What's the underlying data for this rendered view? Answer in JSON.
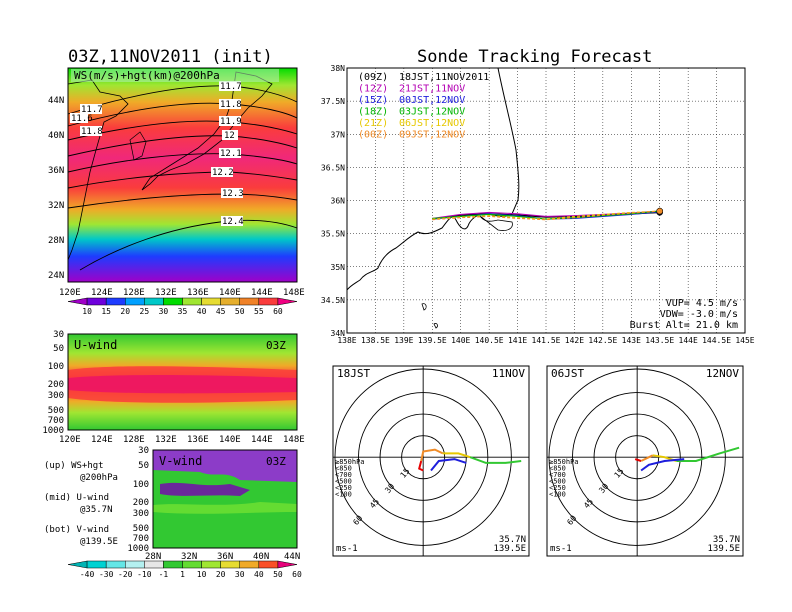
{
  "left": {
    "title": "03Z,11NOV2011 (init)",
    "top_panel": {
      "label": "WS(m/s)+hgt(km)@200hPa",
      "lat_ticks": [
        "44N",
        "40N",
        "36N",
        "32N",
        "28N",
        "24N"
      ],
      "lon_ticks": [
        "120E",
        "124E",
        "128E",
        "132E",
        "136E",
        "140E",
        "144E",
        "148E"
      ],
      "contours": [
        "11.6",
        "11.7",
        "11.7",
        "11.8",
        "11.8",
        "11.9",
        "12",
        "12.1",
        "12.2",
        "12.3",
        "12.4"
      ]
    },
    "ws_colorbar": {
      "ticks": [
        "10",
        "15",
        "20",
        "25",
        "30",
        "35",
        "40",
        "45",
        "50",
        "55",
        "60"
      ],
      "colors": [
        "#a000c8",
        "#6e00dc",
        "#1e3cff",
        "#00a0ff",
        "#00c8c8",
        "#00dc00",
        "#a0e632",
        "#e6dc32",
        "#e6af2d",
        "#f08228",
        "#fa3c3c",
        "#f00082"
      ]
    },
    "uwind_panel": {
      "label": "U-wind",
      "time": "03Z",
      "p_ticks": [
        "30",
        "50",
        "100",
        "200",
        "300",
        "500",
        "700",
        "1000"
      ],
      "lon_ticks": [
        "120E",
        "124E",
        "128E",
        "132E",
        "136E",
        "140E",
        "144E",
        "148E"
      ]
    },
    "vwind_panel": {
      "label": "V-wind",
      "time": "03Z",
      "p_ticks": [
        "30",
        "50",
        "100",
        "200",
        "300",
        "500",
        "700",
        "1000"
      ],
      "lat_ticks": [
        "28N",
        "32N",
        "36N",
        "40N",
        "44N"
      ]
    },
    "legend_notes": [
      {
        "a": "(up) WS+hgt",
        "b": "@200hPa"
      },
      {
        "a": "(mid) U-wind",
        "b": "@35.7N"
      },
      {
        "a": "(bot) V-wind",
        "b": "@139.5E"
      }
    ],
    "wind_colorbar": {
      "ticks": [
        "-40",
        "-30",
        "-20",
        "-10",
        "-1",
        "1",
        "10",
        "20",
        "30",
        "40",
        "50",
        "60"
      ],
      "colors": [
        "#00b4b4",
        "#00d2d2",
        "#64e6e6",
        "#b4f0f0",
        "#e6e6e6",
        "#32c832",
        "#64dc32",
        "#a0e632",
        "#e6dc32",
        "#f0aa28",
        "#fa5028",
        "#e6007a"
      ]
    }
  },
  "right": {
    "title": "Sonde Tracking Forecast",
    "map": {
      "lat_ticks": [
        "38N",
        "37.5N",
        "37N",
        "36.5N",
        "36N",
        "35.5N",
        "35N",
        "34.5N",
        "34N"
      ],
      "lon_ticks": [
        "138E",
        "138.5E",
        "139E",
        "139.5E",
        "140E",
        "140.5E",
        "141E",
        "141.5E",
        "142E",
        "142.5E",
        "143E",
        "143.5E",
        "144E",
        "144.5E",
        "145E"
      ],
      "legend": [
        {
          "code": "(09Z)",
          "time": "18JST,11NOV2011",
          "color": "#000000"
        },
        {
          "code": "(12Z)",
          "time": "21JST,11NOV",
          "color": "#b400b4"
        },
        {
          "code": "(15Z)",
          "time": "00JST,12NOV",
          "color": "#1e1edc"
        },
        {
          "code": "(18Z)",
          "time": "03JST,12NOV",
          "color": "#00b400"
        },
        {
          "code": "(21Z)",
          "time": "06JST,12NOV",
          "color": "#e6c800"
        },
        {
          "code": "(00Z)",
          "time": "09JST,12NOV",
          "color": "#f08c28"
        }
      ],
      "params": [
        "VUP= 4.5 m/s",
        "VDW= -3.0 m/s",
        "Burst Alt= 21.0 km"
      ]
    },
    "hodo_left": {
      "time": "18JST",
      "date": "11NOV",
      "rings": [
        "15",
        "30",
        "45",
        "60"
      ],
      "levels": [
        {
          "t": "≥850hPa",
          "c": "#e60000"
        },
        {
          "t": "<850",
          "c": "#f08c28"
        },
        {
          "t": "<700",
          "c": "#e6c800"
        },
        {
          "t": "<500",
          "c": "#32c832"
        },
        {
          "t": "<250",
          "c": "#00b4b4"
        },
        {
          "t": "<100",
          "c": "#1e1edc"
        }
      ],
      "unit": "ms-1",
      "lat": "35.7N",
      "lon": "139.5E"
    },
    "hodo_right": {
      "time": "06JST",
      "date": "12NOV",
      "rings": [
        "15",
        "30",
        "45",
        "60"
      ],
      "levels": [
        {
          "t": "≥850hPa",
          "c": "#e60000"
        },
        {
          "t": "<850",
          "c": "#f08c28"
        },
        {
          "t": "<700",
          "c": "#e6c800"
        },
        {
          "t": "<500",
          "c": "#32c832"
        },
        {
          "t": "<250",
          "c": "#00b4b4"
        },
        {
          "t": "<100",
          "c": "#1e1edc"
        }
      ],
      "unit": "ms-1",
      "lat": "35.7N",
      "lon": "139.5E"
    }
  },
  "chart_data": [
    {
      "type": "line",
      "title": "Sonde Tracking Forecast",
      "xlabel": "",
      "ylabel": "",
      "xlim": [
        138,
        145
      ],
      "ylim": [
        34,
        38
      ],
      "series": [
        {
          "name": "(09Z) 18JST,11NOV2011",
          "x": [
            139.5,
            140.0,
            140.5,
            141.0,
            141.5,
            142.0,
            142.5,
            143.0,
            143.5
          ],
          "y": [
            35.72,
            35.78,
            35.8,
            35.78,
            35.75,
            35.76,
            35.78,
            35.8,
            35.82
          ]
        },
        {
          "name": "(12Z) 21JST,11NOV",
          "x": [
            139.5,
            140.0,
            140.5,
            141.0,
            141.5,
            142.0,
            142.5,
            143.0,
            143.5
          ],
          "y": [
            35.73,
            35.79,
            35.82,
            35.8,
            35.76,
            35.77,
            35.79,
            35.81,
            35.84
          ]
        },
        {
          "name": "(15Z) 00JST,12NOV",
          "x": [
            139.5,
            140.0,
            140.5,
            141.0,
            141.5,
            142.0,
            142.5,
            143.0,
            143.5
          ],
          "y": [
            35.72,
            35.76,
            35.8,
            35.77,
            35.72,
            35.73,
            35.76,
            35.79,
            35.83
          ]
        },
        {
          "name": "(18Z) 03JST,12NOV",
          "x": [
            139.5,
            140.0,
            140.5,
            141.0,
            141.5,
            142.0,
            142.5,
            143.0,
            143.5
          ],
          "y": [
            35.73,
            35.76,
            35.79,
            35.76,
            35.72,
            35.74,
            35.77,
            35.8,
            35.84
          ]
        },
        {
          "name": "(21Z) 06JST,12NOV",
          "x": [
            139.5,
            140.0,
            140.5,
            141.0,
            141.5,
            142.0,
            142.5,
            143.0,
            143.5
          ],
          "y": [
            35.72,
            35.75,
            35.77,
            35.74,
            35.72,
            35.76,
            35.79,
            35.82,
            35.84
          ]
        },
        {
          "name": "(00Z) 09JST,12NOV",
          "x": [
            139.5,
            140.0,
            140.5,
            141.0,
            141.5,
            142.0,
            142.5,
            143.0,
            143.5
          ],
          "y": [
            35.71,
            35.74,
            35.76,
            35.73,
            35.71,
            35.74,
            35.78,
            35.81,
            35.84
          ]
        }
      ]
    }
  ]
}
